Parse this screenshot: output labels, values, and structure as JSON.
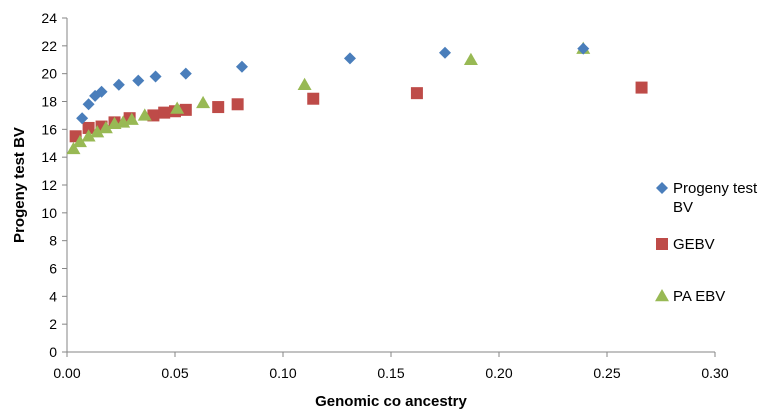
{
  "chart_data": {
    "type": "scatter",
    "xlabel": "Genomic co ancestry",
    "ylabel": "Progeny test BV",
    "xlim": [
      0.0,
      0.3
    ],
    "ylim": [
      0,
      24
    ],
    "x_ticks": [
      "0.00",
      "0.05",
      "0.10",
      "0.15",
      "0.20",
      "0.25",
      "0.30"
    ],
    "y_ticks": [
      "0",
      "2",
      "4",
      "6",
      "8",
      "10",
      "12",
      "14",
      "16",
      "18",
      "20",
      "22",
      "24"
    ],
    "grid": false,
    "legend_position": "right",
    "series": [
      {
        "name": "Progeny test BV",
        "marker": "diamond",
        "color": "#4a7ebb",
        "points": [
          {
            "x": 0.007,
            "y": 16.8
          },
          {
            "x": 0.01,
            "y": 17.8
          },
          {
            "x": 0.013,
            "y": 18.4
          },
          {
            "x": 0.016,
            "y": 18.7
          },
          {
            "x": 0.024,
            "y": 19.2
          },
          {
            "x": 0.033,
            "y": 19.5
          },
          {
            "x": 0.041,
            "y": 19.8
          },
          {
            "x": 0.055,
            "y": 20.0
          },
          {
            "x": 0.081,
            "y": 20.5
          },
          {
            "x": 0.131,
            "y": 21.1
          },
          {
            "x": 0.175,
            "y": 21.5
          },
          {
            "x": 0.239,
            "y": 21.8
          }
        ]
      },
      {
        "name": "GEBV",
        "marker": "square",
        "color": "#be4b48",
        "points": [
          {
            "x": 0.004,
            "y": 15.5
          },
          {
            "x": 0.01,
            "y": 16.1
          },
          {
            "x": 0.016,
            "y": 16.2
          },
          {
            "x": 0.022,
            "y": 16.5
          },
          {
            "x": 0.029,
            "y": 16.8
          },
          {
            "x": 0.04,
            "y": 17.0
          },
          {
            "x": 0.045,
            "y": 17.2
          },
          {
            "x": 0.05,
            "y": 17.3
          },
          {
            "x": 0.055,
            "y": 17.4
          },
          {
            "x": 0.07,
            "y": 17.6
          },
          {
            "x": 0.079,
            "y": 17.8
          },
          {
            "x": 0.114,
            "y": 18.2
          },
          {
            "x": 0.162,
            "y": 18.6
          },
          {
            "x": 0.266,
            "y": 19.0
          }
        ]
      },
      {
        "name": "PA EBV",
        "marker": "triangle",
        "color": "#98b954",
        "points": [
          {
            "x": 0.003,
            "y": 14.6
          },
          {
            "x": 0.006,
            "y": 15.1
          },
          {
            "x": 0.01,
            "y": 15.5
          },
          {
            "x": 0.014,
            "y": 15.8
          },
          {
            "x": 0.018,
            "y": 16.1
          },
          {
            "x": 0.022,
            "y": 16.4
          },
          {
            "x": 0.026,
            "y": 16.5
          },
          {
            "x": 0.03,
            "y": 16.7
          },
          {
            "x": 0.036,
            "y": 17.0
          },
          {
            "x": 0.051,
            "y": 17.5
          },
          {
            "x": 0.063,
            "y": 17.9
          },
          {
            "x": 0.11,
            "y": 19.2
          },
          {
            "x": 0.187,
            "y": 21.0
          },
          {
            "x": 0.239,
            "y": 21.8
          }
        ]
      }
    ]
  }
}
